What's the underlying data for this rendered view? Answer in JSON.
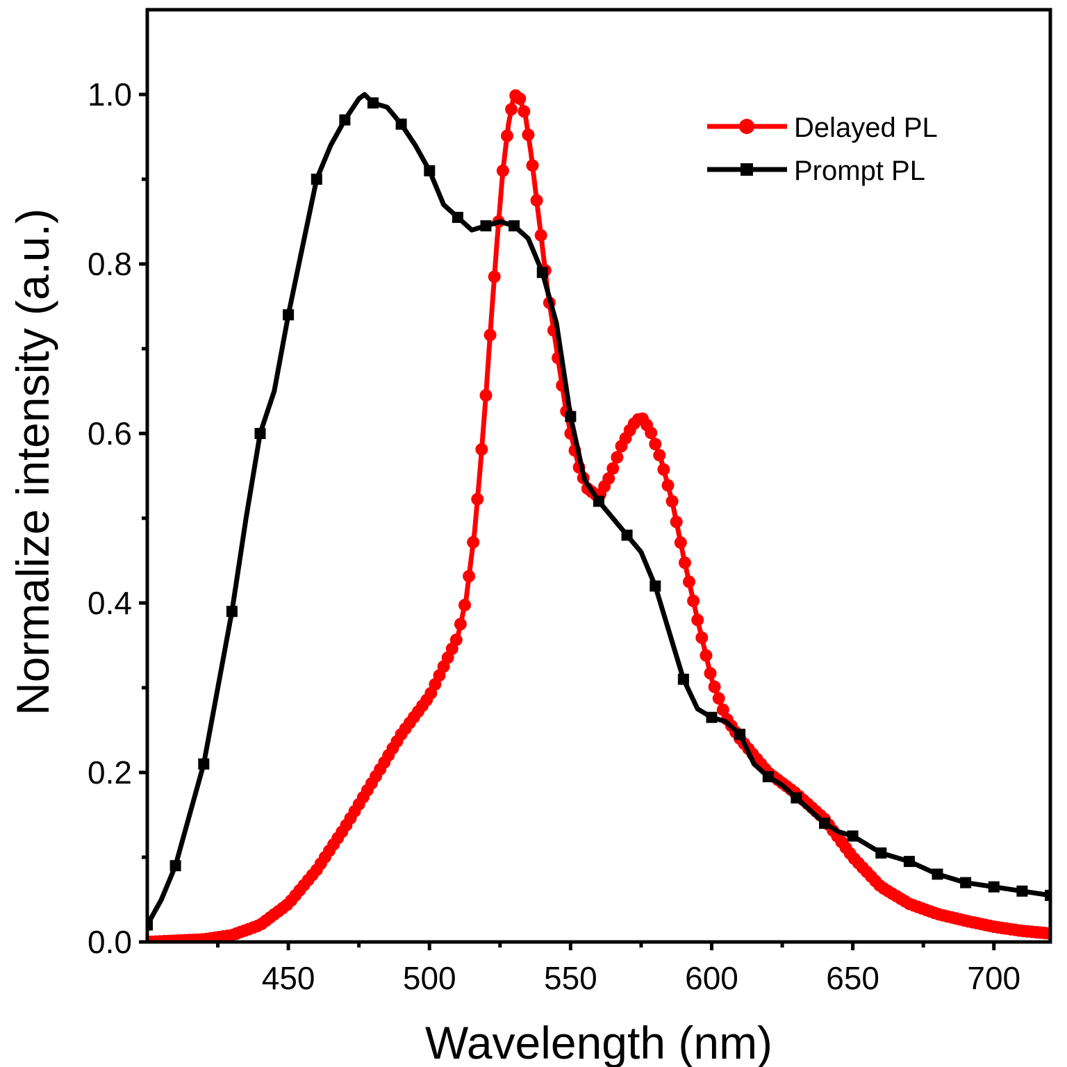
{
  "chart_data": {
    "type": "line",
    "title": "",
    "xlabel": "Wavelength (nm)",
    "ylabel": "Normalize intensity (a.u.)",
    "xlim": [
      400,
      720
    ],
    "ylim": [
      0,
      1.1
    ],
    "x_ticks": [
      450,
      500,
      550,
      600,
      650,
      700
    ],
    "x_tick_labels": [
      "450",
      "500",
      "550",
      "600",
      "650",
      "700"
    ],
    "x_minor_ticks": [
      425,
      475,
      525,
      575,
      625,
      675
    ],
    "y_ticks": [
      0,
      0.2,
      0.4,
      0.6,
      0.8,
      1.0
    ],
    "y_tick_labels": [
      "0.0",
      "0.2",
      "0.4",
      "0.6",
      "0.8",
      "1.0"
    ],
    "y_minor_ticks": [
      0.1,
      0.3,
      0.5,
      0.7,
      0.9
    ],
    "legend_position": "top-right",
    "series": [
      {
        "name": "Delayed PL",
        "color": "#ff0000",
        "marker": "circle",
        "x": [
          400,
          420,
          430,
          440,
          450,
          460,
          470,
          480,
          490,
          500,
          505,
          510,
          513,
          516,
          518,
          520,
          522,
          524,
          526,
          528,
          530,
          532,
          534,
          536,
          538,
          540,
          542,
          545,
          548,
          550,
          553,
          556,
          560,
          564,
          568,
          572,
          575,
          578,
          582,
          586,
          590,
          595,
          600,
          605,
          610,
          620,
          630,
          640,
          650,
          660,
          670,
          680,
          690,
          700,
          710,
          720
        ],
        "y": [
          0.0,
          0.003,
          0.008,
          0.02,
          0.045,
          0.085,
          0.135,
          0.19,
          0.245,
          0.29,
          0.325,
          0.36,
          0.405,
          0.485,
          0.56,
          0.645,
          0.74,
          0.83,
          0.91,
          0.965,
          1.0,
          0.995,
          0.975,
          0.93,
          0.875,
          0.82,
          0.765,
          0.7,
          0.635,
          0.6,
          0.56,
          0.535,
          0.525,
          0.55,
          0.585,
          0.61,
          0.62,
          0.605,
          0.57,
          0.52,
          0.455,
          0.38,
          0.31,
          0.265,
          0.24,
          0.2,
          0.175,
          0.145,
          0.1,
          0.065,
          0.045,
          0.033,
          0.025,
          0.018,
          0.013,
          0.01
        ]
      },
      {
        "name": "Prompt PL",
        "color": "#000000",
        "marker": "square",
        "x": [
          400,
          405,
          410,
          415,
          420,
          425,
          430,
          435,
          440,
          445,
          450,
          455,
          460,
          465,
          470,
          475,
          477,
          480,
          485,
          490,
          495,
          500,
          505,
          510,
          515,
          520,
          525,
          530,
          535,
          540,
          545,
          550,
          555,
          560,
          565,
          570,
          575,
          580,
          585,
          590,
          595,
          600,
          605,
          610,
          615,
          620,
          625,
          630,
          635,
          640,
          645,
          650,
          660,
          670,
          680,
          690,
          700,
          710,
          720
        ],
        "y": [
          0.02,
          0.05,
          0.09,
          0.15,
          0.21,
          0.3,
          0.39,
          0.5,
          0.6,
          0.65,
          0.74,
          0.82,
          0.9,
          0.94,
          0.97,
          0.995,
          1.0,
          0.99,
          0.985,
          0.965,
          0.94,
          0.91,
          0.87,
          0.855,
          0.84,
          0.845,
          0.85,
          0.845,
          0.83,
          0.79,
          0.73,
          0.62,
          0.545,
          0.52,
          0.5,
          0.48,
          0.46,
          0.42,
          0.365,
          0.31,
          0.275,
          0.265,
          0.26,
          0.245,
          0.21,
          0.195,
          0.185,
          0.17,
          0.155,
          0.14,
          0.13,
          0.125,
          0.105,
          0.095,
          0.08,
          0.07,
          0.065,
          0.06,
          0.055
        ]
      }
    ]
  }
}
